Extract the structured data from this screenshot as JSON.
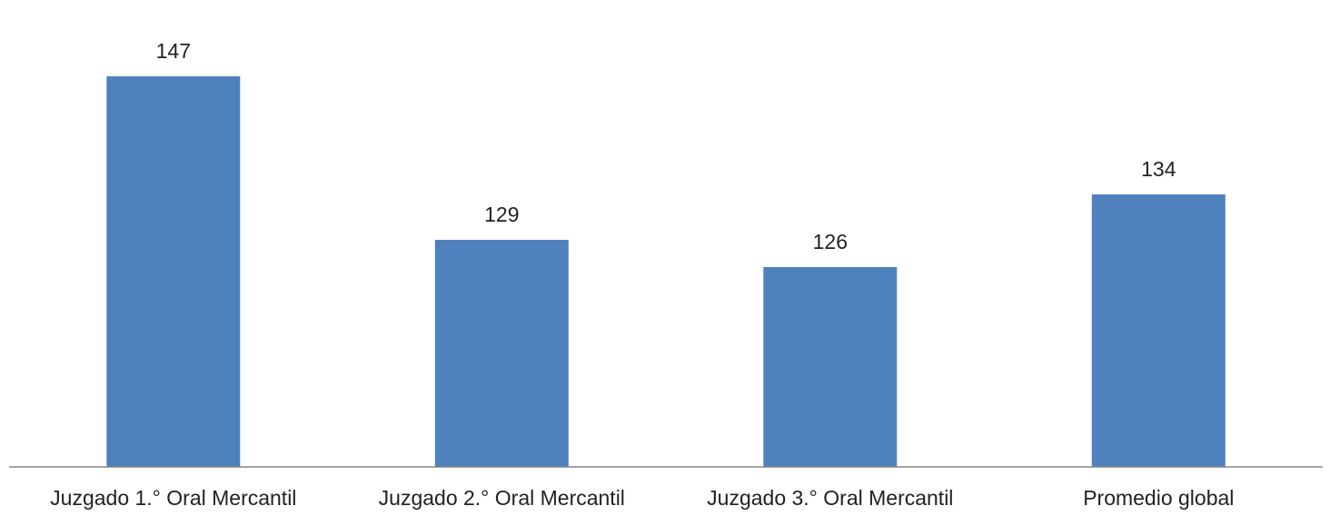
{
  "chart_data": {
    "type": "bar",
    "categories": [
      "Juzgado 1.°  Oral Mercantil",
      "Juzgado 2.° Oral Mercantil",
      "Juzgado 3.° Oral Mercantil",
      "Promedio global"
    ],
    "values": [
      147,
      129,
      126,
      134
    ],
    "title": "",
    "xlabel": "",
    "ylabel": "",
    "ylim": [
      104,
      150
    ],
    "grid": false,
    "legend": "none",
    "data_labels": true,
    "colors": {
      "bar": "#4F81BD",
      "axis": "#868686",
      "text": "#222222",
      "background": "#FFFFFF"
    }
  }
}
